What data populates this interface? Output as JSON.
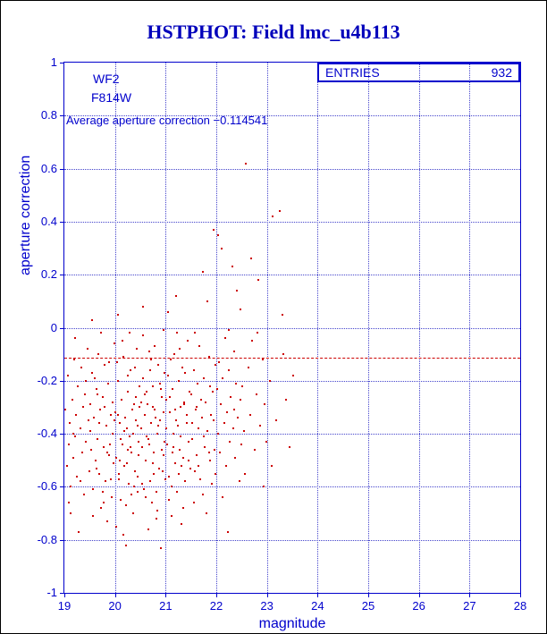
{
  "page": {
    "title": "HSTPHOT: Field lmc_u4b113"
  },
  "colors": {
    "axis_blue": "#0000cc",
    "title_blue": "#0000bb",
    "point_red": "#cc0000"
  },
  "chart_data": {
    "type": "scatter",
    "title": "HSTPHOT: Field lmc_u4b113",
    "xlabel": "magnitude",
    "ylabel": "aperture correction",
    "xlim": [
      19,
      28
    ],
    "ylim": [
      -1,
      1
    ],
    "grid": true,
    "x_ticks": [
      "19",
      "20",
      "21",
      "22",
      "23",
      "24",
      "25",
      "26",
      "27",
      "28"
    ],
    "y_ticks": [
      "1",
      "0.8",
      "0.6",
      "0.4",
      "0.2",
      "0",
      "-0.2",
      "-0.4",
      "-0.6",
      "-0.8",
      "-1"
    ],
    "detector_label": "WF2",
    "filter_label": "F814W",
    "entries_label": "ENTRIES",
    "entries_value": "932",
    "annotation": "Average aperture correction −0.114541",
    "average_line_y": -0.114541,
    "points": [
      [
        19.02,
        -0.31
      ],
      [
        19.05,
        -0.52
      ],
      [
        19.07,
        -0.18
      ],
      [
        19.09,
        -0.44
      ],
      [
        19.11,
        -0.36
      ],
      [
        19.13,
        -0.6
      ],
      [
        19.15,
        -0.27
      ],
      [
        19.17,
        -0.49
      ],
      [
        19.19,
        -0.12
      ],
      [
        19.21,
        -0.41
      ],
      [
        19.23,
        -0.33
      ],
      [
        19.25,
        -0.56
      ],
      [
        19.27,
        -0.22
      ],
      [
        19.29,
        -0.77
      ],
      [
        19.31,
        -0.38
      ],
      [
        19.33,
        -0.15
      ],
      [
        19.35,
        -0.47
      ],
      [
        19.37,
        -0.3
      ],
      [
        19.39,
        -0.63
      ],
      [
        19.41,
        -0.25
      ],
      [
        19.43,
        -0.43
      ],
      [
        19.45,
        -0.08
      ],
      [
        19.47,
        -0.35
      ],
      [
        19.49,
        -0.54
      ],
      [
        19.12,
        -0.7
      ],
      [
        19.22,
        -0.04
      ],
      [
        19.32,
        -0.58
      ],
      [
        19.42,
        -0.2
      ],
      [
        19.08,
        -0.66
      ],
      [
        19.18,
        -0.4
      ],
      [
        19.51,
        -0.29
      ],
      [
        19.53,
        -0.46
      ],
      [
        19.55,
        -0.17
      ],
      [
        19.57,
        -0.61
      ],
      [
        19.59,
        -0.34
      ],
      [
        19.61,
        -0.5
      ],
      [
        19.63,
        -0.23
      ],
      [
        19.65,
        -0.42
      ],
      [
        19.67,
        -0.1
      ],
      [
        19.69,
        -0.55
      ],
      [
        19.71,
        -0.31
      ],
      [
        19.73,
        -0.68
      ],
      [
        19.75,
        -0.26
      ],
      [
        19.77,
        -0.45
      ],
      [
        19.79,
        -0.14
      ],
      [
        19.81,
        -0.58
      ],
      [
        19.83,
        -0.37
      ],
      [
        19.85,
        -0.73
      ],
      [
        19.87,
        -0.21
      ],
      [
        19.89,
        -0.48
      ],
      [
        19.91,
        -0.33
      ],
      [
        19.93,
        -0.64
      ],
      [
        19.95,
        -0.28
      ],
      [
        19.97,
        -0.51
      ],
      [
        19.99,
        -0.06
      ],
      [
        19.52,
        -0.39
      ],
      [
        19.56,
        -0.71
      ],
      [
        19.6,
        -0.19
      ],
      [
        19.64,
        -0.53
      ],
      [
        19.68,
        -0.36
      ],
      [
        19.72,
        -0.02
      ],
      [
        19.76,
        -0.62
      ],
      [
        19.8,
        -0.3
      ],
      [
        19.84,
        -0.47
      ],
      [
        19.88,
        -0.13
      ],
      [
        19.92,
        -0.57
      ],
      [
        19.96,
        -0.4
      ],
      [
        19.54,
        0.03
      ],
      [
        19.66,
        -0.25
      ],
      [
        19.78,
        -0.66
      ],
      [
        19.9,
        -0.44
      ],
      [
        19.98,
        -0.35
      ],
      [
        20.01,
        -0.32
      ],
      [
        20.03,
        -0.49
      ],
      [
        20.05,
        -0.2
      ],
      [
        20.07,
        -0.57
      ],
      [
        20.09,
        -0.36
      ],
      [
        20.11,
        -0.65
      ],
      [
        20.13,
        -0.27
      ],
      [
        20.15,
        -0.44
      ],
      [
        20.17,
        -0.11
      ],
      [
        20.19,
        -0.52
      ],
      [
        20.21,
        -0.82
      ],
      [
        20.23,
        -0.38
      ],
      [
        20.25,
        -0.24
      ],
      [
        20.27,
        -0.59
      ],
      [
        20.29,
        -0.41
      ],
      [
        20.31,
        -0.16
      ],
      [
        20.33,
        -0.47
      ],
      [
        20.35,
        -0.7
      ],
      [
        20.37,
        -0.29
      ],
      [
        20.39,
        -0.54
      ],
      [
        20.41,
        -0.35
      ],
      [
        20.43,
        -0.08
      ],
      [
        20.45,
        -0.62
      ],
      [
        20.47,
        -0.43
      ],
      [
        20.49,
        -0.22
      ],
      [
        20.02,
        -0.75
      ],
      [
        20.06,
        -0.33
      ],
      [
        20.1,
        -0.5
      ],
      [
        20.14,
        -0.05
      ],
      [
        20.18,
        -0.39
      ],
      [
        20.22,
        -0.67
      ],
      [
        20.26,
        -0.18
      ],
      [
        20.3,
        -0.45
      ],
      [
        20.34,
        -0.31
      ],
      [
        20.38,
        -0.6
      ],
      [
        20.42,
        -0.26
      ],
      [
        20.46,
        -0.48
      ],
      [
        20.04,
        -0.13
      ],
      [
        20.08,
        -0.55
      ],
      [
        20.12,
        -0.42
      ],
      [
        20.16,
        -0.78
      ],
      [
        20.2,
        -0.34
      ],
      [
        20.24,
        -0.51
      ],
      [
        20.28,
        -0.02
      ],
      [
        20.32,
        -0.63
      ],
      [
        20.36,
        -0.4
      ],
      [
        20.4,
        -0.15
      ],
      [
        20.44,
        -0.56
      ],
      [
        20.48,
        -0.3
      ],
      [
        20.05,
        0.05
      ],
      [
        20.25,
        -0.46
      ],
      [
        20.45,
        -0.37
      ],
      [
        20.51,
        -0.28
      ],
      [
        20.53,
        -0.45
      ],
      [
        20.55,
        -0.19
      ],
      [
        20.57,
        -0.61
      ],
      [
        20.59,
        -0.33
      ],
      [
        20.61,
        -0.5
      ],
      [
        20.63,
        -0.24
      ],
      [
        20.65,
        -0.42
      ],
      [
        20.67,
        -0.09
      ],
      [
        20.69,
        -0.58
      ],
      [
        20.71,
        -0.36
      ],
      [
        20.73,
        -0.66
      ],
      [
        20.75,
        -0.22
      ],
      [
        20.77,
        -0.47
      ],
      [
        20.79,
        -0.31
      ],
      [
        20.81,
        -0.72
      ],
      [
        20.83,
        -0.4
      ],
      [
        20.85,
        -0.14
      ],
      [
        20.87,
        -0.53
      ],
      [
        20.89,
        -0.35
      ],
      [
        20.91,
        -0.83
      ],
      [
        20.93,
        -0.26
      ],
      [
        20.95,
        -0.48
      ],
      [
        20.97,
        -0.17
      ],
      [
        20.99,
        -0.57
      ],
      [
        20.52,
        -0.38
      ],
      [
        20.56,
        -0.03
      ],
      [
        20.6,
        -0.64
      ],
      [
        20.64,
        -0.29
      ],
      [
        20.68,
        -0.44
      ],
      [
        20.72,
        -0.12
      ],
      [
        20.76,
        -0.55
      ],
      [
        20.8,
        -0.34
      ],
      [
        20.84,
        -0.69
      ],
      [
        20.88,
        -0.21
      ],
      [
        20.92,
        -0.46
      ],
      [
        20.96,
        -0.32
      ],
      [
        20.54,
        -0.59
      ],
      [
        20.58,
        -0.25
      ],
      [
        20.62,
        -0.41
      ],
      [
        20.66,
        -0.76
      ],
      [
        20.7,
        -0.16
      ],
      [
        20.74,
        -0.51
      ],
      [
        20.78,
        -0.07
      ],
      [
        20.82,
        -0.62
      ],
      [
        20.86,
        -0.37
      ],
      [
        20.9,
        -0.23
      ],
      [
        20.94,
        -0.54
      ],
      [
        20.98,
        -0.43
      ],
      [
        20.55,
        0.08
      ],
      [
        20.75,
        -0.3
      ],
      [
        20.95,
        -0.01
      ],
      [
        21.01,
        -0.27
      ],
      [
        21.03,
        -0.44
      ],
      [
        21.05,
        -0.18
      ],
      [
        21.07,
        -0.56
      ],
      [
        21.09,
        -0.32
      ],
      [
        21.11,
        -0.71
      ],
      [
        21.13,
        -0.23
      ],
      [
        21.15,
        -0.4
      ],
      [
        21.17,
        -0.1
      ],
      [
        21.19,
        -0.51
      ],
      [
        21.21,
        -0.35
      ],
      [
        21.23,
        -0.62
      ],
      [
        21.25,
        -0.2
      ],
      [
        21.27,
        -0.46
      ],
      [
        21.29,
        -0.3
      ],
      [
        21.31,
        -0.74
      ],
      [
        21.33,
        -0.15
      ],
      [
        21.35,
        -0.49
      ],
      [
        21.37,
        -0.28
      ],
      [
        21.39,
        -0.58
      ],
      [
        21.41,
        -0.36
      ],
      [
        21.43,
        -0.05
      ],
      [
        21.45,
        -0.43
      ],
      [
        21.47,
        -0.24
      ],
      [
        21.49,
        -0.53
      ],
      [
        21.02,
        -0.38
      ],
      [
        21.06,
        -0.65
      ],
      [
        21.1,
        -0.12
      ],
      [
        21.14,
        -0.47
      ],
      [
        21.18,
        -0.31
      ],
      [
        21.22,
        -0.02
      ],
      [
        21.26,
        -0.55
      ],
      [
        21.3,
        -0.41
      ],
      [
        21.34,
        -0.68
      ],
      [
        21.38,
        -0.17
      ],
      [
        21.42,
        -0.33
      ],
      [
        21.46,
        -0.5
      ],
      [
        21.04,
        0.06
      ],
      [
        21.08,
        -0.26
      ],
      [
        21.12,
        -0.6
      ],
      [
        21.16,
        -0.45
      ],
      [
        21.2,
        0.12
      ],
      [
        21.24,
        -0.37
      ],
      [
        21.28,
        -0.08
      ],
      [
        21.32,
        -0.52
      ],
      [
        21.36,
        -0.29
      ],
      [
        21.51,
        -0.25
      ],
      [
        21.53,
        -0.42
      ],
      [
        21.55,
        -0.16
      ],
      [
        21.57,
        -0.54
      ],
      [
        21.59,
        -0.31
      ],
      [
        21.61,
        -0.48
      ],
      [
        21.63,
        -0.21
      ],
      [
        21.65,
        -0.38
      ],
      [
        21.67,
        -0.07
      ],
      [
        21.69,
        -0.57
      ],
      [
        21.71,
        -0.34
      ],
      [
        21.73,
        -0.63
      ],
      [
        21.75,
        -0.19
      ],
      [
        21.77,
        -0.45
      ],
      [
        21.79,
        -0.28
      ],
      [
        21.81,
        -0.7
      ],
      [
        21.83,
        -0.39
      ],
      [
        21.85,
        -0.11
      ],
      [
        21.87,
        -0.5
      ],
      [
        21.89,
        -0.33
      ],
      [
        21.91,
        -0.59
      ],
      [
        21.93,
        -0.24
      ],
      [
        21.95,
        0.37
      ],
      [
        21.97,
        -0.46
      ],
      [
        21.99,
        -0.14
      ],
      [
        21.52,
        -0.36
      ],
      [
        21.58,
        -0.02
      ],
      [
        21.64,
        -0.52
      ],
      [
        21.7,
        -0.27
      ],
      [
        21.76,
        -0.41
      ],
      [
        21.82,
        0.1
      ],
      [
        21.88,
        -0.22
      ],
      [
        21.94,
        -0.35
      ],
      [
        21.56,
        -0.66
      ],
      [
        21.62,
        -0.3
      ],
      [
        21.74,
        0.21
      ],
      [
        21.86,
        -0.47
      ],
      [
        21.98,
        -0.55
      ],
      [
        22.01,
        -0.23
      ],
      [
        22.03,
        -0.4
      ],
      [
        22.05,
        -0.13
      ],
      [
        22.07,
        -0.47
      ],
      [
        22.09,
        -0.29
      ],
      [
        22.11,
        0.3
      ],
      [
        22.13,
        -0.19
      ],
      [
        22.15,
        -0.36
      ],
      [
        22.17,
        -0.04
      ],
      [
        22.19,
        -0.52
      ],
      [
        22.21,
        -0.32
      ],
      [
        22.23,
        -0.77
      ],
      [
        22.25,
        -0.16
      ],
      [
        22.27,
        -0.43
      ],
      [
        22.29,
        -0.26
      ],
      [
        22.31,
        0.23
      ],
      [
        22.33,
        -0.38
      ],
      [
        22.35,
        -0.09
      ],
      [
        22.37,
        -0.49
      ],
      [
        22.39,
        -0.21
      ],
      [
        22.41,
        0.14
      ],
      [
        22.43,
        -0.34
      ],
      [
        22.45,
        -0.58
      ],
      [
        22.47,
        -0.27
      ],
      [
        22.49,
        -0.44
      ],
      [
        22.04,
        0.35
      ],
      [
        22.12,
        -0.64
      ],
      [
        22.24,
        -0.01
      ],
      [
        22.36,
        -0.31
      ],
      [
        22.48,
        0.07
      ],
      [
        22.51,
        -0.22
      ],
      [
        22.55,
        -0.39
      ],
      [
        22.59,
        0.62
      ],
      [
        22.63,
        -0.15
      ],
      [
        22.67,
        -0.33
      ],
      [
        22.71,
        -0.05
      ],
      [
        22.75,
        -0.46
      ],
      [
        22.79,
        -0.25
      ],
      [
        22.83,
        0.18
      ],
      [
        22.87,
        -0.37
      ],
      [
        22.91,
        -0.12
      ],
      [
        22.95,
        -0.29
      ],
      [
        22.99,
        -0.43
      ],
      [
        22.57,
        -0.55
      ],
      [
        22.69,
        0.26
      ],
      [
        22.81,
        -0.02
      ],
      [
        22.93,
        -0.6
      ],
      [
        23.05,
        -0.2
      ],
      [
        23.12,
        0.42
      ],
      [
        23.18,
        -0.35
      ],
      [
        23.25,
        0.44
      ],
      [
        23.32,
        -0.1
      ],
      [
        23.38,
        -0.27
      ],
      [
        23.45,
        -0.45
      ],
      [
        23.52,
        -0.18
      ],
      [
        23.1,
        -0.52
      ],
      [
        23.3,
        0.05
      ]
    ]
  }
}
